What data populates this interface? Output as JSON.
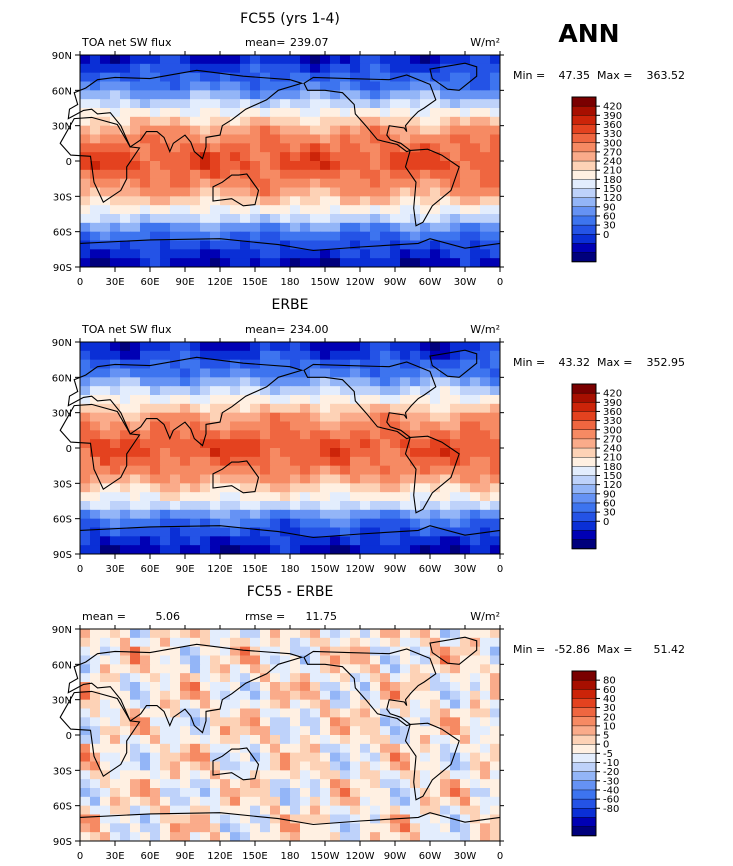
{
  "season": "ANN",
  "units": "W/m²",
  "colors": {
    "palette": [
      "#00007c",
      "#0000b4",
      "#0a2fd6",
      "#2453e6",
      "#3d74ef",
      "#6592f4",
      "#93b5f7",
      "#bed2fa",
      "#e3edfd",
      "#fff0e2",
      "#fdd2b6",
      "#faab8a",
      "#f68a63",
      "#ef6640",
      "#e4421f",
      "#cc2409",
      "#a70f00",
      "#7a0000"
    ],
    "continents": "#000000"
  },
  "chart_data": [
    {
      "type": "heatmap",
      "title": "FC55 (yrs 1-4)",
      "left_label": "TOA net SW flux",
      "stat_label": "mean=",
      "stat_value": "239.07",
      "min_label": "Min =",
      "min": "47.35",
      "max_label": "Max =",
      "max": "363.52",
      "levels": [
        "420",
        "390",
        "360",
        "330",
        "300",
        "270",
        "240",
        "210",
        "180",
        "150",
        "120",
        "90",
        "60",
        "30",
        "0"
      ],
      "xticks": [
        "0",
        "30E",
        "60E",
        "90E",
        "120E",
        "150E",
        "180",
        "150W",
        "120W",
        "90W",
        "60W",
        "30W",
        "0"
      ],
      "yticks": [
        "90N",
        "60N",
        "30N",
        "0",
        "30S",
        "60S",
        "90S"
      ],
      "xlim": [
        0,
        360
      ],
      "ylim": [
        -90,
        90
      ]
    },
    {
      "type": "heatmap",
      "title": "ERBE",
      "left_label": "TOA net SW flux",
      "stat_label": "mean=",
      "stat_value": "234.00",
      "min_label": "Min =",
      "min": "43.32",
      "max_label": "Max =",
      "max": "352.95",
      "levels": [
        "420",
        "390",
        "360",
        "330",
        "300",
        "270",
        "240",
        "210",
        "180",
        "150",
        "120",
        "90",
        "60",
        "30",
        "0"
      ],
      "xticks": [
        "0",
        "30E",
        "60E",
        "90E",
        "120E",
        "150E",
        "180",
        "150W",
        "120W",
        "90W",
        "60W",
        "30W",
        "0"
      ],
      "yticks": [
        "90N",
        "60N",
        "30N",
        "0",
        "30S",
        "60S",
        "90S"
      ],
      "xlim": [
        0,
        360
      ],
      "ylim": [
        -90,
        90
      ]
    },
    {
      "type": "heatmap",
      "title": "FC55 - ERBE",
      "left_label": "mean =",
      "stat_label": "rmse =",
      "stat_value": "11.75",
      "mean_value": "5.06",
      "min_label": "Min =",
      "min": "-52.86",
      "max_label": "Max =",
      "max": "51.42",
      "levels": [
        "80",
        "60",
        "40",
        "30",
        "20",
        "10",
        "5",
        "0",
        "-5",
        "-10",
        "-20",
        "-30",
        "-40",
        "-60",
        "-80"
      ],
      "xticks": [
        "0",
        "30E",
        "60E",
        "90E",
        "120E",
        "150E",
        "180",
        "150W",
        "120W",
        "90W",
        "60W",
        "30W",
        "0"
      ],
      "yticks": [
        "90N",
        "60N",
        "30N",
        "0",
        "30S",
        "60S",
        "90S"
      ],
      "xlim": [
        0,
        360
      ],
      "ylim": [
        -90,
        90
      ]
    }
  ]
}
